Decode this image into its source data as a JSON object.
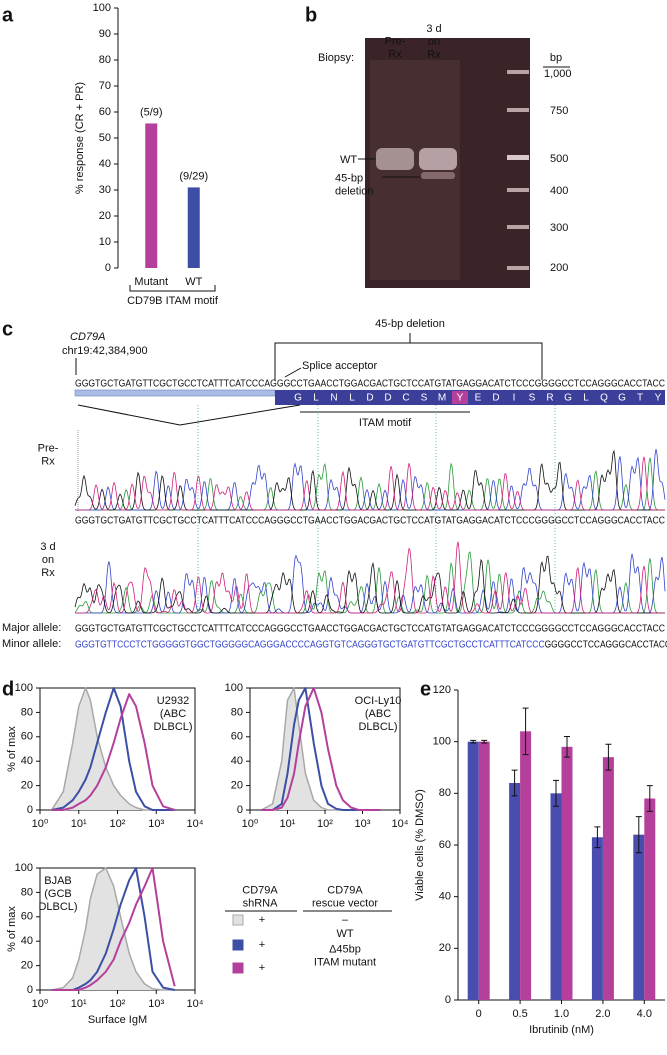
{
  "panel_labels": [
    "a",
    "b",
    "c",
    "d",
    "e"
  ],
  "chart_data": [
    {
      "type": "bar",
      "ylabel": "% response (CR + PR)",
      "xlabel": "CD79B ITAM motif",
      "categories": [
        "Mutant",
        "WT"
      ],
      "values": [
        55.6,
        31
      ],
      "colors": [
        "#b5409b",
        "#3c4fa5"
      ],
      "annotations": [
        "(5/9)",
        "(9/29)"
      ],
      "ylim": [
        0,
        100
      ],
      "yticks": [
        0,
        10,
        20,
        30,
        40,
        50,
        60,
        70,
        80,
        90,
        100
      ]
    },
    {
      "type": "line",
      "xscale": "log",
      "ylabel": "% of max",
      "annotation": "U2932\n(ABC\nDLBCL)",
      "annotation_corner": "upper right",
      "x": [
        2,
        4,
        7,
        10,
        15,
        20,
        30,
        50,
        80,
        120,
        200,
        300,
        500,
        800,
        1500,
        3000
      ],
      "series": [
        {
          "color": "#a8a8a8",
          "fill": "#e2e2e2",
          "values": [
            0,
            15,
            55,
            85,
            100,
            90,
            60,
            35,
            20,
            12,
            5,
            2,
            0,
            0,
            0,
            0
          ]
        },
        {
          "color": "#3c4fa5",
          "values": [
            0,
            2,
            8,
            15,
            25,
            35,
            55,
            80,
            100,
            85,
            40,
            15,
            3,
            0,
            0,
            0
          ]
        },
        {
          "color": "#b5409b",
          "values": [
            0,
            0,
            2,
            5,
            8,
            12,
            20,
            35,
            55,
            75,
            95,
            85,
            55,
            20,
            3,
            0
          ]
        }
      ],
      "xlim": [
        1,
        10000
      ],
      "xticks": [
        {
          "value": 1,
          "label": "10⁰"
        },
        {
          "value": 10,
          "label": "10¹"
        },
        {
          "value": 100,
          "label": "10²"
        },
        {
          "value": 1000,
          "label": "10³"
        },
        {
          "value": 10000,
          "label": "10⁴"
        }
      ],
      "ylim": [
        0,
        100
      ],
      "yticks": [
        0,
        20,
        40,
        60,
        80,
        100
      ]
    },
    {
      "type": "line",
      "xscale": "log",
      "annotation": "OCI-Ly10\n(ABC\nDLBCL)",
      "annotation_corner": "upper right",
      "x": [
        2,
        4,
        7,
        10,
        15,
        20,
        30,
        50,
        80,
        120,
        200,
        300,
        500,
        800,
        1500,
        3000
      ],
      "series": [
        {
          "color": "#a8a8a8",
          "fill": "#e2e2e2",
          "values": [
            0,
            5,
            40,
            90,
            100,
            70,
            30,
            8,
            2,
            0,
            0,
            0,
            0,
            0,
            0,
            0
          ]
        },
        {
          "color": "#3c4fa5",
          "values": [
            0,
            0,
            5,
            30,
            70,
            90,
            100,
            55,
            20,
            5,
            1,
            0,
            0,
            0,
            0,
            0
          ]
        },
        {
          "color": "#b5409b",
          "values": [
            0,
            0,
            2,
            10,
            30,
            55,
            85,
            100,
            80,
            50,
            20,
            8,
            2,
            0,
            0,
            0
          ]
        }
      ],
      "xlim": [
        1,
        10000
      ],
      "xticks": [
        {
          "value": 1,
          "label": "10⁰"
        },
        {
          "value": 10,
          "label": "10¹"
        },
        {
          "value": 100,
          "label": "10²"
        },
        {
          "value": 1000,
          "label": "10³"
        },
        {
          "value": 10000,
          "label": "10⁴"
        }
      ],
      "ylim": [
        0,
        100
      ],
      "yticks": [
        0,
        20,
        40,
        60,
        80,
        100
      ]
    },
    {
      "type": "line",
      "xscale": "log",
      "ylabel": "% of max",
      "xlabel": "Surface IgM",
      "annotation": "BJAB\n(GCB\nDLBCL)",
      "annotation_corner": "upper left",
      "x": [
        2,
        4,
        7,
        10,
        15,
        20,
        30,
        50,
        80,
        120,
        200,
        300,
        500,
        800,
        1500,
        3000
      ],
      "series": [
        {
          "color": "#a8a8a8",
          "fill": "#e2e2e2",
          "values": [
            0,
            2,
            10,
            25,
            50,
            75,
            95,
            100,
            85,
            60,
            30,
            15,
            5,
            1,
            0,
            0
          ]
        },
        {
          "color": "#3c4fa5",
          "values": [
            0,
            0,
            0,
            2,
            5,
            8,
            15,
            30,
            50,
            70,
            90,
            100,
            60,
            15,
            2,
            0
          ]
        },
        {
          "color": "#b5409b",
          "values": [
            0,
            0,
            0,
            0,
            2,
            4,
            8,
            15,
            25,
            40,
            55,
            70,
            85,
            100,
            40,
            3
          ]
        }
      ],
      "xlim": [
        1,
        10000
      ],
      "xticks": [
        {
          "value": 1,
          "label": "10⁰"
        },
        {
          "value": 10,
          "label": "10¹"
        },
        {
          "value": 100,
          "label": "10²"
        },
        {
          "value": 1000,
          "label": "10³"
        },
        {
          "value": 10000,
          "label": "10⁴"
        }
      ],
      "ylim": [
        0,
        100
      ],
      "yticks": [
        0,
        20,
        40,
        60,
        80,
        100
      ]
    },
    {
      "type": "bar",
      "ylabel": "Viable cells (% DMSO)",
      "xlabel": "Ibrutinib (nM)",
      "categories": [
        "0",
        "0.5",
        "1.0",
        "2.0",
        "4.0"
      ],
      "series": [
        {
          "color": "#4a4db0",
          "values": [
            100,
            84,
            80,
            63,
            64
          ],
          "errors": [
            0.5,
            5,
            5,
            4,
            7
          ]
        },
        {
          "color": "#b5409b",
          "values": [
            100,
            104,
            98,
            94,
            78
          ],
          "errors": [
            0.5,
            9,
            4,
            5,
            5
          ]
        }
      ],
      "ylim": [
        0,
        120
      ],
      "yticks": [
        0,
        20,
        40,
        60,
        80,
        100,
        120
      ]
    }
  ],
  "panel_b": {
    "biopsy_label": "Biopsy:",
    "lanes": [
      "Pre-\nRx",
      "3 d\non\nRx"
    ],
    "unit": "bp",
    "ladder": [
      "1,000",
      "750",
      "500",
      "400",
      "300",
      "200"
    ],
    "band_labels": [
      "WT",
      "45-bp\ndeletion"
    ]
  },
  "panel_c": {
    "gene": "CD79A",
    "coordinate": "chr19:42,384,900",
    "deletion_label": "45-bp deletion",
    "splice_label": "Splice acceptor",
    "reference": "GGGTGCTGATGTTCGCTGCCTCATTTCATCCCAGGGCCTGAACCTGGACGACTGCTCCATGTATGAGGACATCTCCCGGGGCCTCCAGGGCACCTACC",
    "amino_acids": [
      "G",
      "L",
      "N",
      "L",
      "D",
      "D",
      "C",
      "S",
      "M",
      "Y",
      "E",
      "D",
      "I",
      "S",
      "R",
      "G",
      "L",
      "Q",
      "G",
      "T",
      "Y"
    ],
    "motif_label": "ITAM motif",
    "samples": [
      "Pre-\nRx",
      "3 d\non\nRx"
    ],
    "trace_sequence": "GGGTGCTGATGTTCGCTGCCTCATTTCATCCCAGGGCCTGAACCTGGACGACTGCTCCATGTATGAGGACATCTCCCGGGGCCTCCAGGGCACCTACC",
    "alleles": [
      {
        "label": "Major allele:",
        "sequence": [
          "GGGTGCTGATGTTCGCTGCCTCATTTCATCCCAGGGCCTGAACCTGGACGACTGCTCCATGTATGAGGACATCTCCCGGGGCCTCCAGGGCACCTACC"
        ]
      },
      {
        "label": "Minor allele:",
        "sequence": [
          "GGGTGTTCCCTCTGGGGGTGGCTGGGGGCAGGGACCCCAGGTGTCAGGGTGCTGATGTTCGCTGCCTCATTTCATCCC",
          "GGGGCCTCCAGGGCACCTACC"
        ]
      }
    ]
  },
  "panel_d_legend": {
    "headers": [
      "CD79A\nshRNA",
      "CD79A\nrescue vector"
    ],
    "rows": [
      [
        "+",
        "–"
      ],
      [
        "+",
        "WT"
      ],
      [
        "+",
        "Δ45bp\nITAM mutant"
      ]
    ]
  }
}
